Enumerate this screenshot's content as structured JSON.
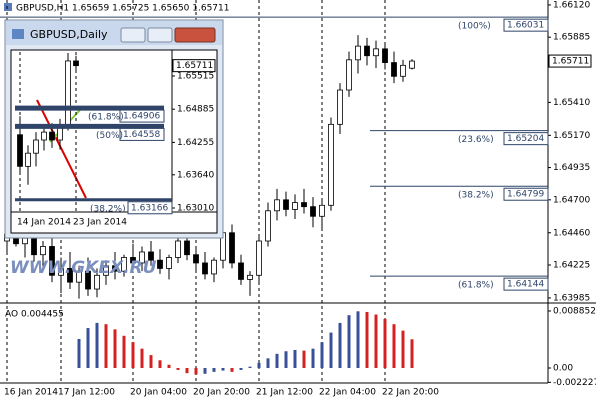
{
  "watermark": "WWW.GKEX.RU",
  "chart_data": [
    {
      "type": "candlestick",
      "title": "GBPUSD,H1 1.65659 1.65725 1.65650 1.65711",
      "categories": [
        "16 Jan 2014",
        null,
        null,
        null,
        null,
        null,
        "17 Jan 12:00",
        null,
        null,
        null,
        null,
        null,
        null,
        null,
        "20 Jan 04:00",
        null,
        null,
        null,
        null,
        null,
        null,
        "20 Jan 20:00",
        null,
        null,
        null,
        null,
        null,
        null,
        "21 Jan 12:00",
        null,
        null,
        null,
        null,
        null,
        null,
        "22 Jan 04:00",
        null,
        null,
        null,
        null,
        null,
        null,
        "22 Jan 20:00",
        null,
        null,
        null
      ],
      "ohlc": [
        [
          1.644,
          1.6452,
          1.643,
          1.6445
        ],
        [
          1.6445,
          1.6455,
          1.6436,
          1.6438
        ],
        [
          1.6438,
          1.6447,
          1.6428,
          1.6442
        ],
        [
          1.6442,
          1.645,
          1.6425,
          1.643
        ],
        [
          1.643,
          1.644,
          1.6418,
          1.6436
        ],
        [
          1.6436,
          1.6442,
          1.641,
          1.6415
        ],
        [
          1.6415,
          1.6428,
          1.6402,
          1.642
        ],
        [
          1.642,
          1.6432,
          1.6405,
          1.641
        ],
        [
          1.641,
          1.6422,
          1.6398,
          1.6418
        ],
        [
          1.6418,
          1.6428,
          1.64,
          1.6405
        ],
        [
          1.6405,
          1.642,
          1.6399,
          1.6415
        ],
        [
          1.6415,
          1.6426,
          1.6408,
          1.6422
        ],
        [
          1.6422,
          1.6432,
          1.6412,
          1.6418
        ],
        [
          1.6418,
          1.643,
          1.6414,
          1.6428
        ],
        [
          1.6428,
          1.6438,
          1.642,
          1.6424
        ],
        [
          1.6424,
          1.6436,
          1.6418,
          1.6432
        ],
        [
          1.6432,
          1.644,
          1.6422,
          1.6426
        ],
        [
          1.6426,
          1.6434,
          1.6416,
          1.642
        ],
        [
          1.642,
          1.643,
          1.6412,
          1.6428
        ],
        [
          1.6428,
          1.6444,
          1.6424,
          1.644
        ],
        [
          1.644,
          1.6446,
          1.6426,
          1.643
        ],
        [
          1.643,
          1.6436,
          1.6418,
          1.6424
        ],
        [
          1.6424,
          1.6432,
          1.6412,
          1.6416
        ],
        [
          1.6416,
          1.6428,
          1.641,
          1.6426
        ],
        [
          1.6426,
          1.645,
          1.642,
          1.6446
        ],
        [
          1.6446,
          1.6452,
          1.642,
          1.6424
        ],
        [
          1.6424,
          1.643,
          1.6408,
          1.6412
        ],
        [
          1.6412,
          1.6418,
          1.64,
          1.6415
        ],
        [
          1.6415,
          1.6445,
          1.641,
          1.644
        ],
        [
          1.644,
          1.6468,
          1.6436,
          1.6462
        ],
        [
          1.6462,
          1.6478,
          1.6455,
          1.647
        ],
        [
          1.647,
          1.6476,
          1.6458,
          1.6463
        ],
        [
          1.6463,
          1.6474,
          1.6456,
          1.6468
        ],
        [
          1.6468,
          1.6478,
          1.646,
          1.6465
        ],
        [
          1.6465,
          1.6472,
          1.645,
          1.6458
        ],
        [
          1.6458,
          1.647,
          1.6448,
          1.6466
        ],
        [
          1.6466,
          1.653,
          1.6462,
          1.6525
        ],
        [
          1.6525,
          1.6555,
          1.6518,
          1.655
        ],
        [
          1.655,
          1.6578,
          1.6545,
          1.6572
        ],
        [
          1.6572,
          1.659,
          1.6562,
          1.6582
        ],
        [
          1.6582,
          1.6588,
          1.6568,
          1.6575
        ],
        [
          1.6575,
          1.6586,
          1.6566,
          1.658
        ],
        [
          1.658,
          1.6585,
          1.6565,
          1.657
        ],
        [
          1.657,
          1.6578,
          1.6555,
          1.656
        ],
        [
          1.656,
          1.6572,
          1.6556,
          1.6568
        ],
        [
          1.65659,
          1.65725,
          1.6565,
          1.65711
        ]
      ],
      "up_color": "#ffffff",
      "down_color": "#000000",
      "ylim": [
        1.6397,
        1.66156
      ],
      "yticks": [
        {
          "value": 1.6612,
          "label": "1.66120"
        },
        {
          "value": 1.65885,
          "label": "1.65885"
        },
        {
          "value": 1.6541,
          "label": "1.65410"
        },
        {
          "value": 1.6517,
          "label": "1.65170"
        },
        {
          "value": 1.64935,
          "label": "1.64935"
        },
        {
          "value": 1.647,
          "label": "1.64700"
        },
        {
          "value": 1.6446,
          "label": "1.64460"
        },
        {
          "value": 1.64225,
          "label": "1.64225"
        },
        {
          "value": 1.63985,
          "label": "1.63985"
        }
      ],
      "last_price": {
        "value": 1.65711,
        "label": "1.65711"
      },
      "levels": [
        {
          "value": 1.66031,
          "label": "1.66031",
          "fib": "(100%)"
        },
        {
          "value": 1.65204,
          "label": "1.65204",
          "fib": "(23.6%)"
        },
        {
          "value": 1.64799,
          "label": "1.64799",
          "fib": "(38.2%)"
        },
        {
          "value": 1.64144,
          "label": "1.64144",
          "fib": "(61.8%)"
        }
      ]
    },
    {
      "type": "bar",
      "title": "AO 0.004455",
      "values": [
        null,
        null,
        null,
        null,
        null,
        null,
        null,
        null,
        0.0045,
        0.0062,
        0.007,
        0.0068,
        0.006,
        0.005,
        0.004,
        0.003,
        0.002,
        0.0012,
        0.0005,
        -0.0003,
        -0.0008,
        -0.001,
        -0.0009,
        -0.0006,
        -0.0004,
        -0.0006,
        -0.0003,
        0.0002,
        0.0008,
        0.0015,
        0.0022,
        0.0026,
        0.0028,
        0.0027,
        0.003,
        0.004,
        0.0055,
        0.007,
        0.0082,
        0.0088,
        0.0087,
        0.0083,
        0.0076,
        0.0068,
        0.0058,
        0.004455
      ],
      "up_color": "#3a4f9a",
      "down_color": "#d42020",
      "ylim": [
        -0.00233,
        0.00978
      ],
      "yticks": [
        {
          "value": 0.008852,
          "label": "0.008852"
        },
        {
          "value": 0,
          "label": "0.00"
        },
        {
          "value": -0.002227,
          "label": "-0.002227"
        }
      ]
    },
    {
      "type": "candlestick",
      "title": "GBPUSD,Daily",
      "categories": [
        "14 Jan 2014",
        null,
        null,
        null,
        null,
        null,
        null,
        "23 Jan 2014"
      ],
      "ohlc": [
        [
          1.644,
          1.6475,
          1.6365,
          1.638
        ],
        [
          1.638,
          1.642,
          1.6345,
          1.6405
        ],
        [
          1.6405,
          1.6445,
          1.638,
          1.643
        ],
        [
          1.643,
          1.646,
          1.641,
          1.6445
        ],
        [
          1.6445,
          1.6462,
          1.6415,
          1.643
        ],
        [
          1.643,
          1.647,
          1.6412,
          1.6455
        ],
        [
          1.6455,
          1.6595,
          1.6448,
          1.658
        ],
        [
          1.658,
          1.659,
          1.656,
          1.65711
        ]
      ],
      "up_color": "#ffffff",
      "down_color": "#000000",
      "ylim": [
        1.62934,
        1.6597
      ],
      "yticks": [
        {
          "value": 1.65515,
          "label": "1.65515"
        },
        {
          "value": 1.64885,
          "label": "1.64885"
        },
        {
          "value": 1.64255,
          "label": "1.64255"
        },
        {
          "value": 1.6364,
          "label": "1.63640"
        },
        {
          "value": 1.6301,
          "label": "1.63010"
        }
      ],
      "last_price": {
        "value": 1.65711,
        "label": "1.65711"
      },
      "levels": [
        {
          "value": 1.64906,
          "label": "1.64906",
          "fib": "(61.8%)"
        },
        {
          "value": 1.64558,
          "label": "1.64558",
          "fib": "(50%)"
        },
        {
          "value": 1.63166,
          "label": "1.63166",
          "fib": "(38.2%)"
        }
      ]
    }
  ]
}
